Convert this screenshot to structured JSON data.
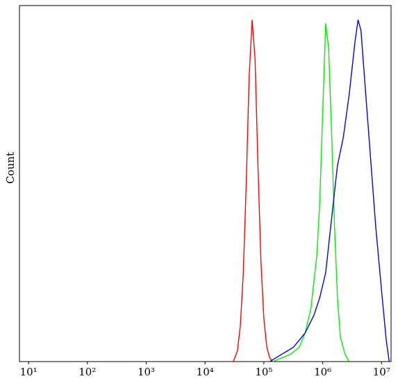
{
  "chart_data": {
    "type": "line",
    "y_label": "Count",
    "xscale": "log",
    "xlim": [
      7,
      14500000
    ],
    "ylim": [
      0,
      100
    ],
    "xticks": [
      {
        "value": 10,
        "label": "10¹"
      },
      {
        "value": 100,
        "label": "10²"
      },
      {
        "value": 1000,
        "label": "10³"
      },
      {
        "value": 10000,
        "label": "10⁴"
      },
      {
        "value": 100000,
        "label": "10⁵"
      },
      {
        "value": 1000000,
        "label": "10⁶"
      },
      {
        "value": 10000000,
        "label": "10⁷"
      }
    ],
    "series": [
      {
        "color": "#ff0000",
        "x": [
          30200,
          35500,
          39800,
          44700,
          50100,
          56200,
          63100,
          70800,
          79400,
          89100,
          100000,
          112200,
          125900,
          141300
        ],
        "values": [
          0,
          3,
          10,
          25,
          50,
          80,
          96,
          85,
          55,
          28,
          12,
          4,
          1,
          0
        ]
      },
      {
        "color": "#00ee00",
        "x": [
          141300,
          199500,
          281800,
          398100,
          501200,
          631000,
          794300,
          891300,
          1000000,
          1122000,
          1259000,
          1413000,
          1585000,
          1778000,
          1995000,
          2399000,
          2818000
        ],
        "values": [
          0,
          1,
          2,
          4,
          8,
          15,
          30,
          45,
          70,
          95,
          88,
          65,
          38,
          18,
          7,
          2,
          0
        ]
      },
      {
        "color": "#0000ee",
        "x": [
          125900,
          199500,
          316200,
          501200,
          707900,
          891300,
          1122000,
          1413000,
          1778000,
          2239000,
          2818000,
          3548000,
          3981000,
          4467000,
          5012000,
          6310000,
          7943000,
          10000000,
          12020000,
          13490000
        ],
        "values": [
          0,
          2,
          4,
          8,
          13,
          18,
          25,
          40,
          55,
          63,
          75,
          90,
          96,
          93,
          82,
          60,
          38,
          20,
          6,
          0
        ]
      }
    ]
  }
}
